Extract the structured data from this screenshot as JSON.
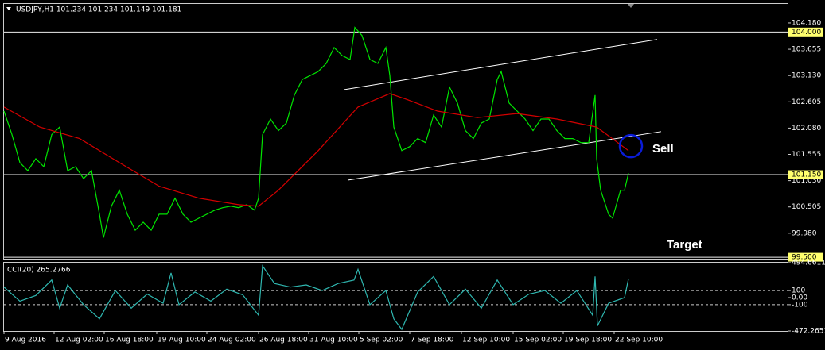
{
  "chart_data": [
    {
      "type": "line",
      "title": "USDJPY,H1  101.234 101.234 101.149 101.181",
      "xlim": [
        0,
        985
      ],
      "ylim": [
        99.47,
        104.56
      ],
      "xticks": [
        {
          "value": 0,
          "label": "9 Aug 2016"
        },
        {
          "value": 63,
          "label": "12 Aug 02:00"
        },
        {
          "value": 126,
          "label": "16 Aug 18:00"
        },
        {
          "value": 192,
          "label": "19 Aug 10:00"
        },
        {
          "value": 255,
          "label": "24 Aug 02:00"
        },
        {
          "value": 320,
          "label": "26 Aug 18:00"
        },
        {
          "value": 383,
          "label": "31 Aug 10:00"
        },
        {
          "value": 446,
          "label": "5 Sep 02:00"
        },
        {
          "value": 510,
          "label": "7 Sep 18:00"
        },
        {
          "value": 575,
          "label": "12 Sep 10:00"
        },
        {
          "value": 640,
          "label": "15 Sep 02:00"
        },
        {
          "value": 703,
          "label": "19 Sep 18:00"
        },
        {
          "value": 767,
          "label": "22 Sep 10:00"
        }
      ],
      "yticks": [
        {
          "value": 104.18,
          "label": "104.180"
        },
        {
          "value": 103.655,
          "label": "103.655"
        },
        {
          "value": 103.13,
          "label": "103.130"
        },
        {
          "value": 102.605,
          "label": "102.605"
        },
        {
          "value": 102.08,
          "label": "102.080"
        },
        {
          "value": 101.555,
          "label": "101.555"
        },
        {
          "value": 101.03,
          "label": "101.030"
        },
        {
          "value": 100.505,
          "label": "100.505"
        },
        {
          "value": 99.98,
          "label": "99.980"
        }
      ],
      "series": [
        {
          "color": "#00e600",
          "x": [
            0,
            10,
            20,
            30,
            40,
            50,
            60,
            70,
            80,
            90,
            100,
            110,
            120,
            125,
            135,
            145,
            155,
            165,
            175,
            185,
            195,
            205,
            215,
            225,
            235,
            245,
            255,
            265,
            275,
            285,
            295,
            305,
            315,
            320,
            325,
            335,
            345,
            355,
            365,
            375,
            385,
            395,
            405,
            415,
            425,
            435,
            441,
            450,
            460,
            470,
            480,
            485,
            490,
            500,
            510,
            520,
            530,
            540,
            550,
            560,
            570,
            580,
            590,
            600,
            610,
            620,
            625,
            635,
            645,
            655,
            665,
            675,
            685,
            695,
            705,
            715,
            725,
            735,
            743,
            745,
            750,
            760,
            765,
            775,
            780,
            785
          ],
          "values": [
            102.42,
            101.95,
            101.39,
            101.23,
            101.47,
            101.31,
            101.95,
            102.1,
            101.23,
            101.31,
            101.07,
            101.23,
            100.36,
            99.89,
            100.52,
            100.84,
            100.36,
            100.04,
            100.2,
            100.04,
            100.36,
            100.36,
            100.68,
            100.36,
            100.2,
            100.28,
            100.36,
            100.44,
            100.49,
            100.52,
            100.49,
            100.55,
            100.44,
            100.68,
            101.95,
            102.26,
            102.03,
            102.18,
            102.74,
            103.05,
            103.13,
            103.21,
            103.37,
            103.69,
            103.53,
            103.45,
            104.09,
            103.93,
            103.45,
            103.37,
            103.69,
            103.13,
            102.1,
            101.63,
            101.71,
            101.87,
            101.79,
            102.34,
            102.1,
            102.9,
            102.58,
            102.03,
            101.87,
            102.18,
            102.26,
            103.05,
            103.21,
            102.58,
            102.42,
            102.26,
            102.03,
            102.26,
            102.26,
            102.03,
            101.87,
            101.87,
            101.79,
            101.79,
            102.74,
            101.47,
            100.84,
            100.36,
            100.28,
            100.84,
            100.84,
            101.18
          ]
        },
        {
          "color": "#d40000",
          "x": [
            0,
            45,
            95,
            145,
            195,
            245,
            295,
            320,
            345,
            395,
            445,
            485,
            505,
            545,
            595,
            645,
            695,
            745,
            785
          ],
          "values": [
            102.5,
            102.1,
            101.87,
            101.39,
            100.92,
            100.68,
            100.55,
            100.52,
            100.84,
            101.63,
            102.5,
            102.77,
            102.66,
            102.42,
            102.29,
            102.37,
            102.26,
            102.1,
            101.63
          ]
        }
      ],
      "hlines": [
        {
          "value": 104.0,
          "label": "104.000"
        },
        {
          "value": 101.15,
          "label": "101.150"
        },
        {
          "value": 99.5,
          "label": "99.500"
        }
      ],
      "trendlines": [
        {
          "x": [
            428,
            821
          ],
          "y": [
            102.85,
            103.85
          ]
        },
        {
          "x": [
            432,
            826
          ],
          "y": [
            101.04,
            102.01
          ]
        }
      ],
      "circles": [
        {
          "x": 788,
          "y": 101.72,
          "color": "#0a1cd8"
        }
      ],
      "annotations": [
        "Sell",
        "Target"
      ]
    },
    {
      "type": "line",
      "title": "CCI(20) 265.2766",
      "xlim": [
        0,
        985
      ],
      "ylim": [
        -472.2651,
        494.6611
      ],
      "yticks": [
        494.6611,
        100,
        {
          "value": 0,
          "label": "0.00"
        },
        -100,
        -472.2651
      ],
      "levels": [
        100,
        -100
      ],
      "series": [
        {
          "color": "#2fb7b0",
          "x": [
            0,
            20,
            40,
            60,
            70,
            80,
            100,
            120,
            140,
            160,
            180,
            200,
            210,
            220,
            240,
            260,
            280,
            300,
            320,
            325,
            340,
            360,
            380,
            400,
            420,
            440,
            445,
            460,
            480,
            490,
            500,
            520,
            540,
            560,
            580,
            600,
            620,
            640,
            660,
            680,
            700,
            720,
            740,
            743,
            746,
            760,
            780,
            785
          ],
          "values": [
            150,
            -50,
            30,
            250,
            -150,
            180,
            -100,
            -300,
            100,
            -150,
            50,
            -80,
            350,
            -100,
            80,
            -50,
            120,
            40,
            -250,
            450,
            200,
            150,
            180,
            100,
            200,
            250,
            400,
            -100,
            100,
            -300,
            -450,
            80,
            300,
            -100,
            120,
            -150,
            250,
            -100,
            50,
            100,
            -80,
            100,
            -250,
            300,
            -400,
            -80,
            0,
            265
          ]
        }
      ]
    }
  ]
}
